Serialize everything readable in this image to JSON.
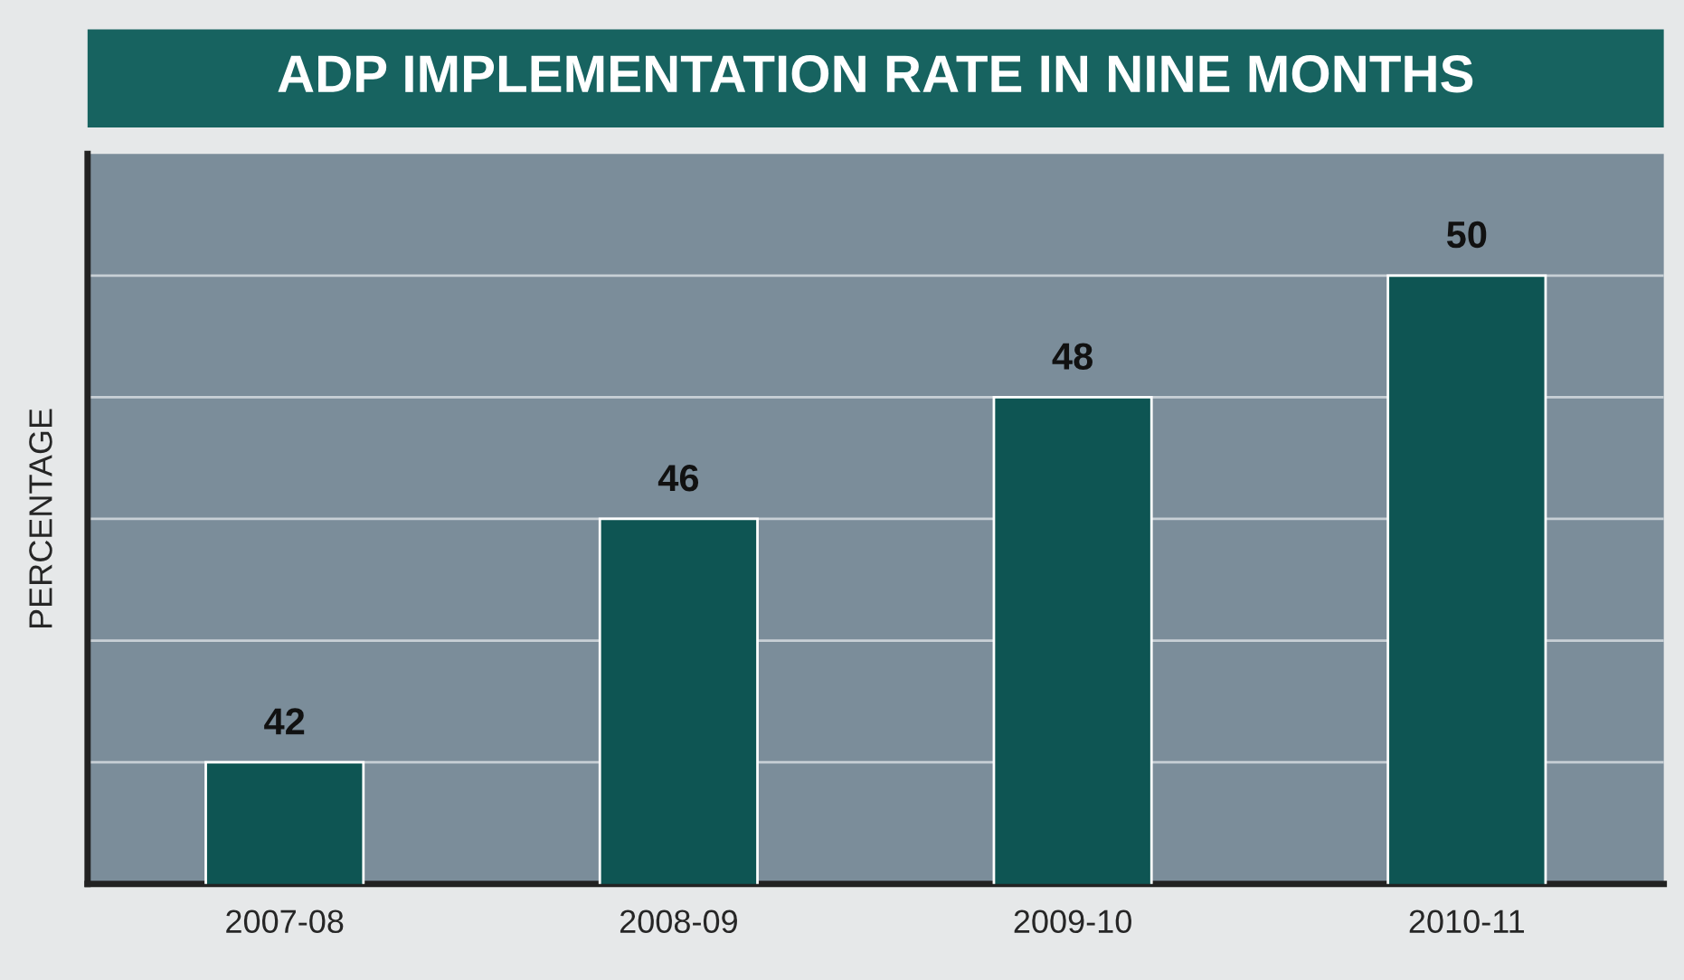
{
  "chart_data": {
    "type": "bar",
    "title": "ADP IMPLEMENTATION RATE IN NINE MONTHS",
    "ylabel": "PERCENTAGE",
    "categories": [
      "2007-08",
      "2008-09",
      "2009-10",
      "2010-11"
    ],
    "values": [
      42,
      46,
      48,
      50
    ],
    "color": "#0e5553",
    "ylim": [
      40,
      52
    ],
    "yticks": [
      {
        "value": 42,
        "label": null
      },
      {
        "value": 44,
        "label": null
      },
      {
        "value": 46,
        "label": null
      },
      {
        "value": 48,
        "label": null
      },
      {
        "value": 50,
        "label": null
      }
    ],
    "grid": "y",
    "data_labels": true
  }
}
